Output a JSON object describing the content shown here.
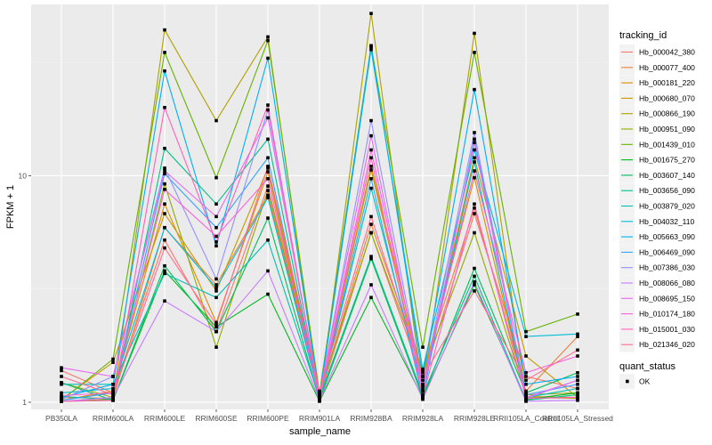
{
  "chart_data": {
    "type": "line",
    "title": "",
    "xlabel": "sample_name",
    "ylabel": "FPKM + 1",
    "yscale": "log10",
    "ylim": [
      0.93,
      57
    ],
    "yticks": [
      {
        "value": 1,
        "label": "1"
      },
      {
        "value": 10,
        "label": "10"
      }
    ],
    "grid": true,
    "legend_position": "right",
    "categories": [
      "PB350LA",
      "RRIM600LA",
      "RRIM600LE",
      "RRIM600SE",
      "RRIM600PE",
      "RRIM901LA",
      "RRIM928BA",
      "RRIM928LA",
      "RRIM928LE",
      "RRII105LA_Control",
      "RRII105LA_Stressed"
    ],
    "legend_color_title": "tracking_id",
    "legend_shape_title": "quant_status",
    "legend_shape_items": [
      {
        "label": "OK",
        "shape": "square"
      }
    ],
    "series": [
      {
        "name": "Hb_000042_380",
        "color": "#F8766D",
        "values": [
          1.38,
          1.1,
          5.2,
          2.05,
          9.0,
          1.05,
          5.6,
          1.25,
          6.8,
          1.3,
          1.15
        ]
      },
      {
        "name": "Hb_000077_400",
        "color": "#EC8239",
        "values": [
          1.05,
          1.04,
          5.9,
          3.3,
          8.2,
          1.08,
          6.1,
          1.38,
          7.2,
          1.12,
          1.95
        ]
      },
      {
        "name": "Hb_000181_220",
        "color": "#DB8E00",
        "values": [
          1.02,
          1.12,
          7.5,
          2.25,
          10.4,
          1.03,
          11.0,
          1.3,
          9.8,
          1.06,
          1.05
        ]
      },
      {
        "name": "Hb_000680_070",
        "color": "#C79800",
        "values": [
          1.03,
          1.5,
          6.8,
          3.1,
          10.8,
          1.06,
          10.6,
          1.2,
          12.0,
          1.6,
          1.05
        ]
      },
      {
        "name": "Hb_000866_190",
        "color": "#AFA100",
        "values": [
          1.01,
          1.03,
          44.0,
          17.5,
          41.0,
          1.02,
          52.0,
          1.12,
          42.5,
          1.05,
          1.04
        ]
      },
      {
        "name": "Hb_000951_090",
        "color": "#93AA00",
        "values": [
          1.22,
          1.05,
          9.2,
          1.75,
          8.6,
          1.1,
          5.6,
          1.35,
          5.6,
          1.08,
          1.1
        ]
      },
      {
        "name": "Hb_001439_010",
        "color": "#64B200",
        "values": [
          1.02,
          1.55,
          35.0,
          9.8,
          39.5,
          1.1,
          37.5,
          1.75,
          35.0,
          2.05,
          2.45
        ]
      },
      {
        "name": "Hb_001675_270",
        "color": "#00B81F",
        "values": [
          1.01,
          1.02,
          3.8,
          2.15,
          3.0,
          1.01,
          2.9,
          1.05,
          3.3,
          1.03,
          1.1
        ]
      },
      {
        "name": "Hb_003607_140",
        "color": "#00BD5C",
        "values": [
          1.22,
          1.02,
          4.0,
          2.05,
          6.5,
          1.02,
          4.3,
          1.05,
          3.9,
          1.1,
          1.35
        ]
      },
      {
        "name": "Hb_003656_090",
        "color": "#00C08B",
        "values": [
          1.06,
          1.03,
          13.2,
          7.5,
          14.5,
          1.05,
          4.4,
          1.08,
          3.6,
          1.02,
          1.08
        ]
      },
      {
        "name": "Hb_003879_020",
        "color": "#00C0B2",
        "values": [
          1.2,
          1.2,
          3.7,
          2.9,
          5.2,
          1.04,
          8.8,
          1.15,
          11.5,
          1.05,
          1.15
        ]
      },
      {
        "name": "Hb_004032_110",
        "color": "#00BCD8",
        "values": [
          1.1,
          1.15,
          5.9,
          3.2,
          8.0,
          1.05,
          36.0,
          1.4,
          13.0,
          1.95,
          2.0
        ]
      },
      {
        "name": "Hb_005663_090",
        "color": "#00B0F6",
        "values": [
          1.05,
          1.2,
          29.0,
          4.9,
          33.0,
          1.06,
          37.0,
          1.3,
          24.0,
          1.2,
          1.3
        ]
      },
      {
        "name": "Hb_006469_090",
        "color": "#35A2FF",
        "values": [
          1.02,
          1.1,
          10.2,
          5.9,
          12.0,
          1.03,
          9.7,
          1.05,
          14.5,
          1.08,
          1.2
        ]
      },
      {
        "name": "Hb_007386_030",
        "color": "#9590FF",
        "values": [
          1.03,
          1.3,
          10.8,
          3.5,
          19.5,
          1.07,
          17.5,
          1.18,
          15.5,
          1.04,
          1.25
        ]
      },
      {
        "name": "Hb_008066_080",
        "color": "#C77CFF",
        "values": [
          1.01,
          1.05,
          2.8,
          2.05,
          3.8,
          1.02,
          3.3,
          1.03,
          3.4,
          1.01,
          1.02
        ]
      },
      {
        "name": "Hb_008695_150",
        "color": "#E76BF3",
        "values": [
          1.42,
          1.3,
          10.5,
          6.6,
          18.0,
          1.08,
          15.0,
          1.12,
          14.0,
          1.05,
          1.25
        ]
      },
      {
        "name": "Hb_010174_180",
        "color": "#FA62DB",
        "values": [
          1.07,
          1.1,
          8.7,
          5.4,
          9.7,
          1.04,
          13.0,
          1.2,
          10.5,
          1.35,
          1.6
        ]
      },
      {
        "name": "Hb_015001_030",
        "color": "#FF62BC",
        "values": [
          1.01,
          1.02,
          20.0,
          5.1,
          20.5,
          1.03,
          12.0,
          1.06,
          7.5,
          1.04,
          1.05
        ]
      },
      {
        "name": "Hb_021346_020",
        "color": "#FF6C91",
        "values": [
          1.3,
          1.08,
          4.8,
          2.2,
          11.0,
          1.12,
          6.6,
          1.3,
          3.1,
          1.25,
          1.7
        ]
      }
    ]
  }
}
